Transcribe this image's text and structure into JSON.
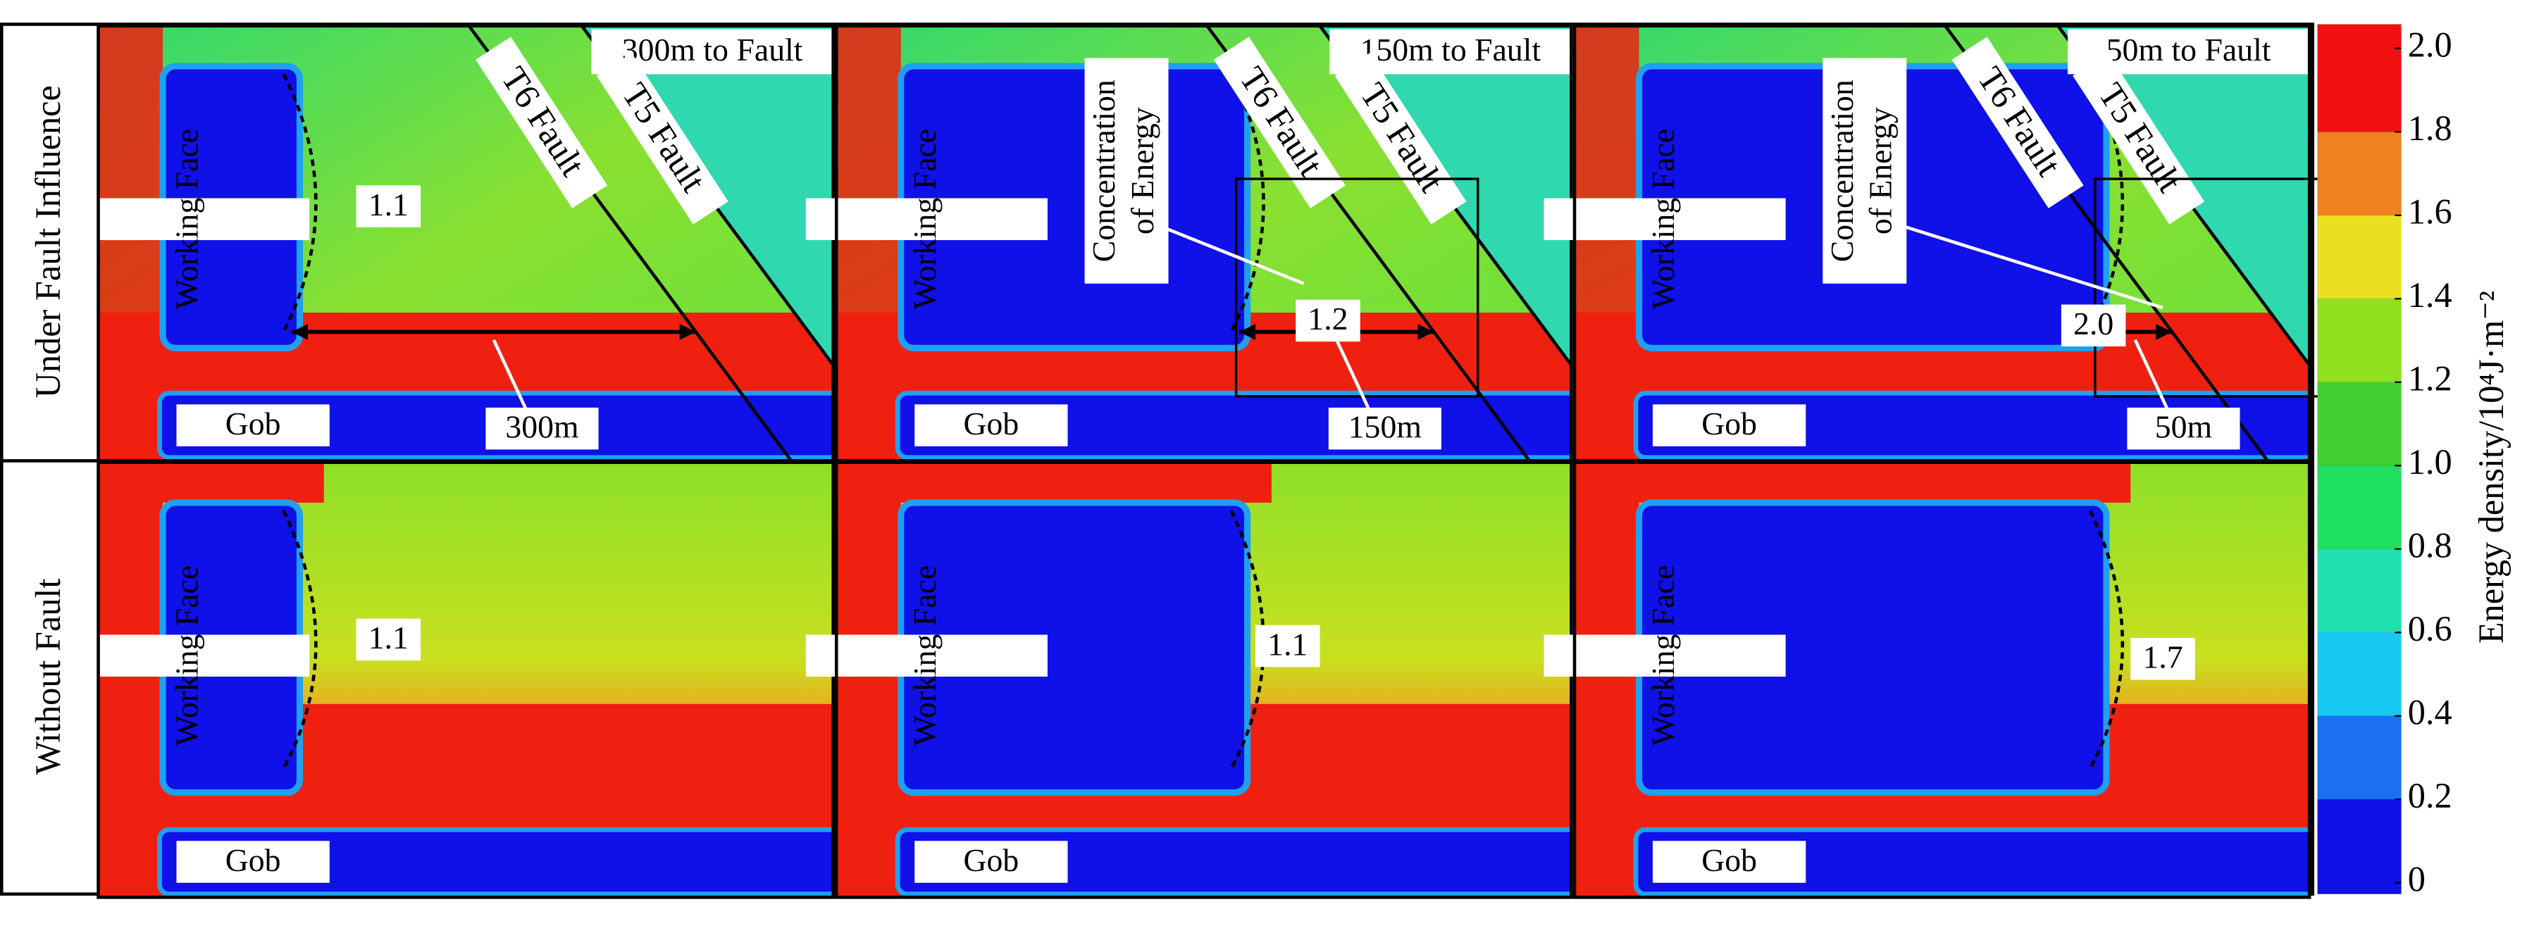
{
  "row_labels": [
    "Under Fault Influence",
    "Without Fault"
  ],
  "panels": [
    {
      "distance_label": "300m to Fault",
      "faults": [
        "T6 Fault",
        "T5 Fault"
      ],
      "working_face": "Working Face",
      "gob": "Gob",
      "peak": "1.1",
      "span": "300m"
    },
    {
      "distance_label": "150m to Fault",
      "faults": [
        "T6 Fault",
        "T5 Fault"
      ],
      "working_face": "Working Face",
      "gob": "Gob",
      "concentration": [
        "Concentration",
        "of Energy"
      ],
      "peak": "1.2",
      "span": "150m"
    },
    {
      "distance_label": "50m to Fault",
      "faults": [
        "T6 Fault",
        "T5 Fault"
      ],
      "working_face": "Working Face",
      "gob": "Gob",
      "concentration": [
        "Concentration",
        "of Energy"
      ],
      "peak": "2.0",
      "span": "50m"
    },
    {
      "working_face": "Working Face",
      "gob": "Gob",
      "peak": "1.1"
    },
    {
      "working_face": "Working Face",
      "gob": "Gob",
      "peak": "1.1"
    },
    {
      "working_face": "Working Face",
      "gob": "Gob",
      "peak": "1.7"
    }
  ],
  "colorbar": {
    "title": "Energy density/10⁴J·m⁻²",
    "ticks": [
      0,
      0.2,
      0.4,
      0.6,
      0.8,
      {
        "value": 1,
        "label": "1.0"
      },
      1.2,
      1.4,
      1.6,
      1.8,
      {
        "value": 2,
        "label": "2.0"
      }
    ]
  }
}
